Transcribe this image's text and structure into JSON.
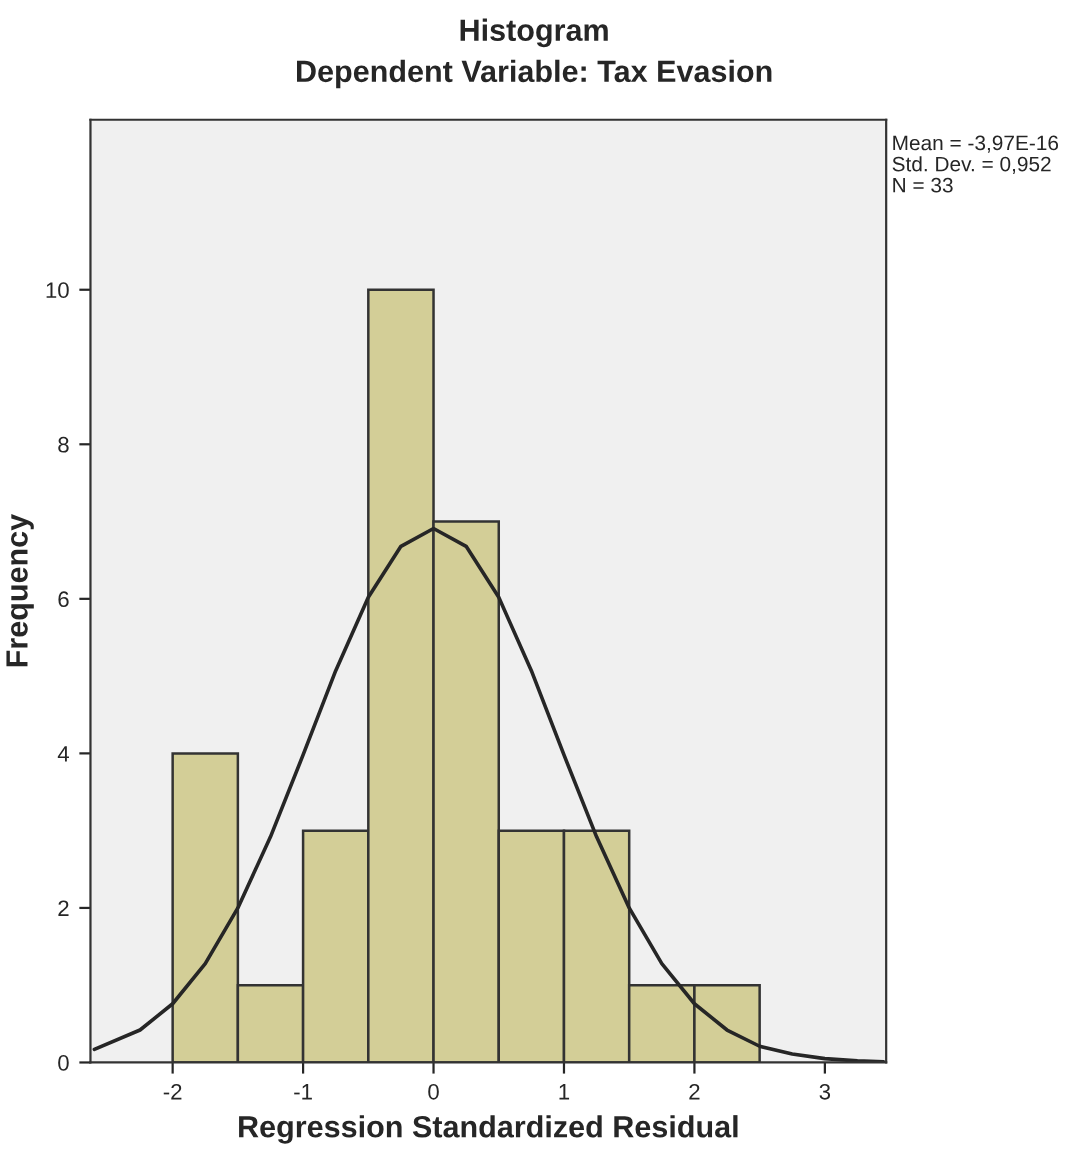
{
  "chart_data": {
    "type": "histogram",
    "title": "Histogram",
    "subtitle": "Dependent Variable: Tax Evasion",
    "xlabel": "Regression Standardized Residual",
    "ylabel": "Frequency",
    "bins": [
      -2,
      -1.5,
      -1,
      -0.5,
      0,
      0.5,
      1,
      1.5,
      2,
      2.5
    ],
    "values": [
      4,
      1,
      3,
      10,
      7,
      3,
      3,
      1,
      1
    ],
    "color": "#d3ce97",
    "series": [
      {
        "type": "line",
        "color": "#262626",
        "x": [
          -2.6,
          -2.25,
          -2,
          -1.75,
          -1.5,
          -1.25,
          -1,
          -0.75,
          -0.5,
          -0.25,
          0,
          0.25,
          0.5,
          0.75,
          1,
          1.25,
          1.5,
          1.75,
          2,
          2.25,
          2.5,
          2.75,
          3,
          3.25,
          3.45
        ],
        "values": [
          0.17,
          0.42,
          0.76,
          1.28,
          2.0,
          2.92,
          3.98,
          5.07,
          6.02,
          6.68,
          6.91,
          6.68,
          6.02,
          5.07,
          3.98,
          2.92,
          2.0,
          1.28,
          0.76,
          0.42,
          0.21,
          0.11,
          0.05,
          0.02,
          0.01
        ]
      }
    ],
    "xlim": [
      -2.63,
      3.47
    ],
    "xticks": [
      -2,
      -1,
      0,
      1,
      2,
      3
    ],
    "ylim": [
      0,
      12.2
    ],
    "yticks": [
      0,
      2,
      4,
      6,
      8,
      10
    ],
    "annotations": [
      "Mean = -3,97E-16",
      "Std. Dev. = 0,952",
      "N = 33"
    ],
    "grid": false,
    "legend": false
  }
}
